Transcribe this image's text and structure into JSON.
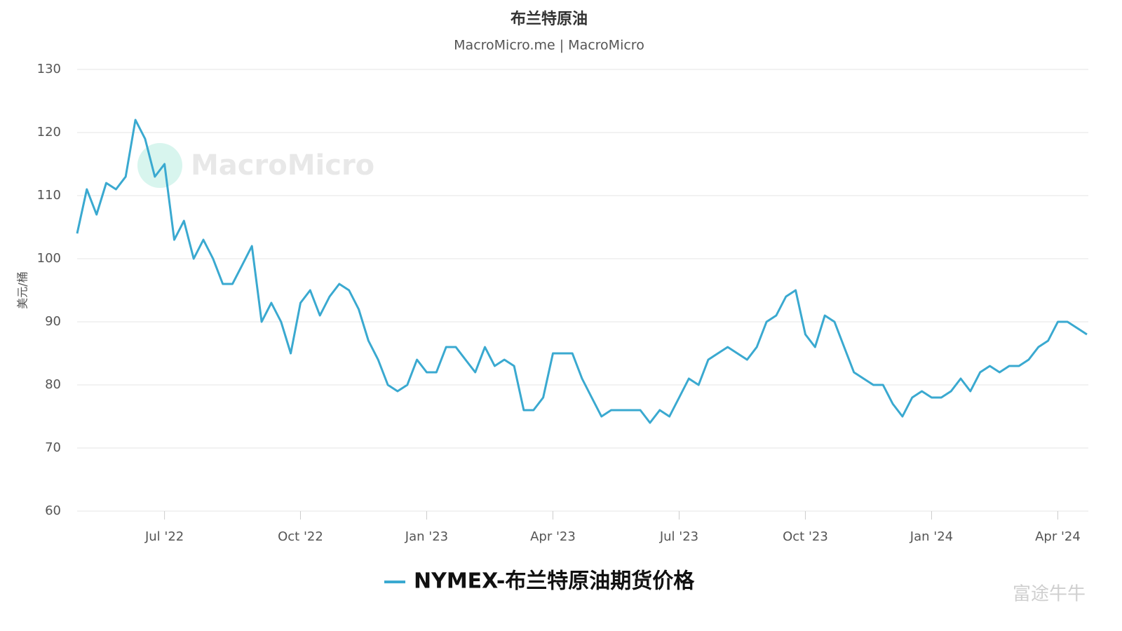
{
  "chart_data": {
    "type": "line",
    "title": "布兰特原油",
    "subtitle": "MacroMicro.me | MacroMicro",
    "y_label": "美元/桶",
    "watermark": "MacroMicro",
    "footer_logo": "富途牛牛",
    "categories": [
      null,
      null,
      null,
      null,
      null,
      null,
      null,
      null,
      null,
      "Jul '22",
      null,
      null,
      null,
      null,
      null,
      null,
      null,
      null,
      null,
      null,
      null,
      null,
      null,
      "Oct '22",
      null,
      null,
      null,
      null,
      null,
      null,
      null,
      null,
      null,
      null,
      null,
      null,
      "Jan '23",
      null,
      null,
      null,
      null,
      null,
      null,
      null,
      null,
      null,
      null,
      null,
      null,
      "Apr '23",
      null,
      null,
      null,
      null,
      null,
      null,
      null,
      null,
      null,
      null,
      null,
      null,
      "Jul '23",
      null,
      null,
      null,
      null,
      null,
      null,
      null,
      null,
      null,
      null,
      null,
      null,
      "Oct '23",
      null,
      null,
      null,
      null,
      null,
      null,
      null,
      null,
      null,
      null,
      null,
      null,
      "Jan '24",
      null,
      null,
      null,
      null,
      null,
      null,
      null,
      null,
      null,
      null,
      null,
      null,
      "Apr '24",
      null,
      null,
      null
    ],
    "series": [
      {
        "name": "NYMEX-布兰特原油期货价格",
        "color": "#3aa9d0",
        "values": [
          104,
          111,
          107,
          112,
          111,
          113,
          122,
          119,
          113,
          115,
          103,
          106,
          100,
          103,
          100,
          96,
          96,
          99,
          102,
          90,
          93,
          90,
          85,
          93,
          95,
          91,
          94,
          96,
          95,
          92,
          87,
          84,
          80,
          79,
          80,
          84,
          82,
          82,
          86,
          86,
          84,
          82,
          86,
          83,
          84,
          83,
          76,
          76,
          78,
          85,
          85,
          85,
          81,
          78,
          75,
          76,
          76,
          76,
          76,
          74,
          76,
          75,
          78,
          81,
          80,
          84,
          85,
          86,
          85,
          84,
          86,
          90,
          91,
          94,
          95,
          88,
          86,
          91,
          90,
          86,
          82,
          81,
          80,
          80,
          77,
          75,
          78,
          79,
          78,
          78,
          79,
          81,
          79,
          82,
          83,
          82,
          83,
          83,
          84,
          86,
          87,
          90,
          90,
          89,
          88
        ]
      }
    ],
    "ylim": [
      60,
      130
    ],
    "yticks": [
      60,
      70,
      80,
      90,
      100,
      110,
      120,
      130
    ],
    "grid": true
  }
}
